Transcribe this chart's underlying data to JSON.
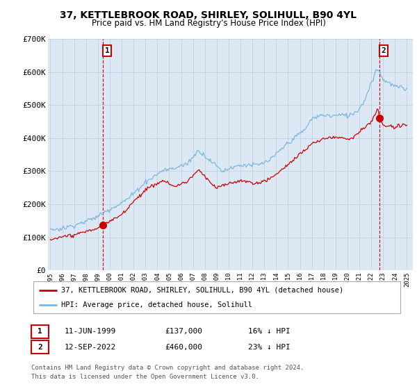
{
  "title": "37, KETTLEBROOK ROAD, SHIRLEY, SOLIHULL, B90 4YL",
  "subtitle": "Price paid vs. HM Land Registry's House Price Index (HPI)",
  "bg_color": "#dce9f5",
  "plot_bg_color": "#dce9f5",
  "hpi_color": "#7ab4e0",
  "price_color": "#cc0000",
  "annotation_color": "#cc0000",
  "ylim": [
    0,
    700000
  ],
  "yticks": [
    0,
    100000,
    200000,
    300000,
    400000,
    500000,
    600000,
    700000
  ],
  "ytick_labels": [
    "£0",
    "£100K",
    "£200K",
    "£300K",
    "£400K",
    "£500K",
    "£600K",
    "£700K"
  ],
  "sale1_year": 1999.44,
  "sale1_price": 137000,
  "sale2_year": 2022.69,
  "sale2_price": 460000,
  "legend_line1": "37, KETTLEBROOK ROAD, SHIRLEY, SOLIHULL, B90 4YL (detached house)",
  "legend_line2": "HPI: Average price, detached house, Solihull",
  "footnote": "Contains HM Land Registry data © Crown copyright and database right 2024.\nThis data is licensed under the Open Government Licence v3.0.",
  "table_row1": [
    "1",
    "11-JUN-1999",
    "£137,000",
    "16% ↓ HPI"
  ],
  "table_row2": [
    "2",
    "12-SEP-2022",
    "£460,000",
    "23% ↓ HPI"
  ]
}
